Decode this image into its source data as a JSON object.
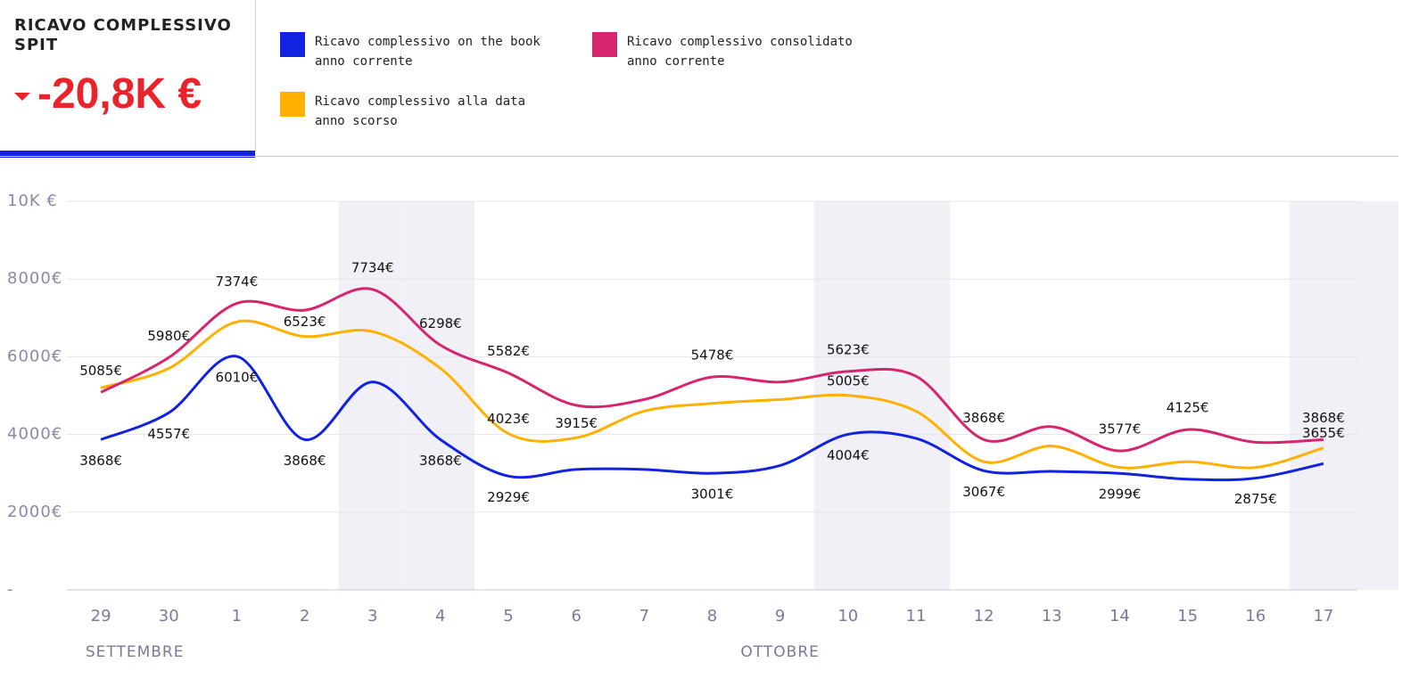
{
  "header": {
    "title": "RICAVO COMPLESSIVO SPIT",
    "kpi": "-20,8K €"
  },
  "chart_data": {
    "type": "line",
    "categories": [
      "29",
      "30",
      "1",
      "2",
      "3",
      "4",
      "5",
      "6",
      "7",
      "8",
      "9",
      "10",
      "11",
      "12",
      "13",
      "14",
      "15",
      "16",
      "17"
    ],
    "x_groups": [
      {
        "label": "SETTEMBRE",
        "start": 0,
        "end": 1
      },
      {
        "label": "OTTOBRE",
        "start": 2,
        "end": 18
      }
    ],
    "shaded": [
      4,
      5,
      11,
      12,
      18
    ],
    "ylim": [
      0,
      10000
    ],
    "yticks": [
      {
        "value": 0,
        "label": "-"
      },
      {
        "value": 2000,
        "label": "2000€"
      },
      {
        "value": 4000,
        "label": "4000€"
      },
      {
        "value": 6000,
        "label": "6000€"
      },
      {
        "value": 8000,
        "label": "8000€"
      },
      {
        "value": 10000,
        "label": "10K €"
      }
    ],
    "grid": true,
    "series": [
      {
        "name": "Ricavo complessivo on the book anno corrente",
        "color": "#1122e0",
        "values": [
          3868,
          4557,
          6010,
          3868,
          5350,
          3868,
          2929,
          3100,
          3100,
          3001,
          3200,
          4004,
          3900,
          3067,
          3050,
          2999,
          2850,
          2875,
          3250
        ],
        "value_labels": [
          "3868€",
          "4557€",
          "6010€",
          "3868€",
          null,
          "3868€",
          "2929€",
          null,
          null,
          "3001€",
          null,
          "4004€",
          null,
          "3067€",
          null,
          "2999€",
          null,
          "2875€",
          null
        ]
      },
      {
        "name": "Ricavo complessivo consolidato anno corrente",
        "color": "#d6246e",
        "values": [
          5085,
          5980,
          7374,
          7200,
          7734,
          6298,
          5582,
          4750,
          4900,
          5478,
          5350,
          5623,
          5500,
          3868,
          4200,
          3577,
          4125,
          3800,
          3868
        ],
        "value_labels": [
          "5085€",
          "5980€",
          "7374€",
          null,
          "7734€",
          "6298€",
          "5582€",
          null,
          null,
          "5478€",
          null,
          "5623€",
          null,
          "3868€",
          null,
          "3577€",
          "4125€",
          null,
          "3868€"
        ]
      },
      {
        "name": "Ricavo complessivo alla data anno scorso",
        "color": "#ffb000",
        "values": [
          5200,
          5700,
          6900,
          6523,
          6650,
          5700,
          4023,
          3915,
          4600,
          4800,
          4900,
          5005,
          4600,
          3300,
          3700,
          3150,
          3300,
          3150,
          3655
        ],
        "value_labels": [
          null,
          null,
          null,
          "6523€",
          null,
          null,
          "4023€",
          "3915€",
          null,
          null,
          null,
          "5005€",
          null,
          null,
          null,
          null,
          null,
          null,
          "3655€"
        ]
      }
    ]
  }
}
